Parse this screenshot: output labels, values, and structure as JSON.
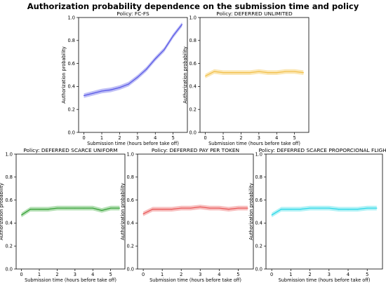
{
  "suptitle": "Authorization probability dependence on the submission time and policy",
  "chart_data": [
    {
      "type": "line",
      "title": "Policy: FC-FS",
      "xlabel": "Submission time (hours before take off)",
      "ylabel": "Authorization probability",
      "xlim": [
        -0.3,
        5.8
      ],
      "ylim": [
        0.0,
        1.0
      ],
      "xticks": [
        "0",
        "1",
        "2",
        "3",
        "4",
        "5"
      ],
      "yticks": [
        "0.0",
        "0.2",
        "0.4",
        "0.6",
        "0.8",
        "1.0"
      ],
      "grid": false,
      "color": "#5a5ae6",
      "band_color": "#b3b3f5",
      "x": [
        0,
        0.5,
        1,
        1.5,
        2,
        2.5,
        3,
        3.5,
        4,
        4.5,
        5,
        5.5
      ],
      "y": [
        0.32,
        0.34,
        0.36,
        0.37,
        0.39,
        0.42,
        0.48,
        0.55,
        0.64,
        0.72,
        0.84,
        0.94
      ],
      "band": 0.02
    },
    {
      "type": "line",
      "title": "Policy: DEFERRED UNLIMITED",
      "xlabel": "Submission time (hours before take off)",
      "ylabel": "Authorization probability",
      "xlim": [
        -0.3,
        5.8
      ],
      "ylim": [
        0.0,
        1.0
      ],
      "xticks": [
        "0",
        "1",
        "2",
        "3",
        "4",
        "5"
      ],
      "yticks": [
        "0.0",
        "0.2",
        "0.4",
        "0.6",
        "0.8",
        "1.0"
      ],
      "grid": false,
      "color": "#f2c14e",
      "band_color": "#fae3a8",
      "x": [
        0,
        0.5,
        1,
        1.5,
        2,
        2.5,
        3,
        3.5,
        4,
        4.5,
        5,
        5.5
      ],
      "y": [
        0.49,
        0.53,
        0.52,
        0.52,
        0.52,
        0.52,
        0.53,
        0.52,
        0.52,
        0.53,
        0.53,
        0.52
      ],
      "band": 0.02
    },
    {
      "type": "line",
      "title": "Policy: DEFERRED SCARCE UNIFORM",
      "xlabel": "Submission time (hours before take off)",
      "ylabel": "Authorization probability",
      "xlim": [
        -0.3,
        5.8
      ],
      "ylim": [
        0.0,
        1.0
      ],
      "xticks": [
        "0",
        "1",
        "2",
        "3",
        "4",
        "5"
      ],
      "yticks": [
        "0.0",
        "0.2",
        "0.4",
        "0.6",
        "0.8",
        "1.0"
      ],
      "grid": false,
      "color": "#3aa13a",
      "band_color": "#a8dba8",
      "x": [
        0,
        0.5,
        1,
        1.5,
        2,
        2.5,
        3,
        3.5,
        4,
        4.5,
        5,
        5.5
      ],
      "y": [
        0.47,
        0.52,
        0.52,
        0.52,
        0.53,
        0.53,
        0.53,
        0.53,
        0.53,
        0.51,
        0.53,
        0.53
      ],
      "band": 0.02
    },
    {
      "type": "line",
      "title": "Policy: DEFERRED PAY PER TOKEN",
      "xlabel": "Submission time (hours before take off)",
      "ylabel": "Authorization probability",
      "xlim": [
        -0.3,
        5.8
      ],
      "ylim": [
        0.0,
        1.0
      ],
      "xticks": [
        "0",
        "1",
        "2",
        "3",
        "4",
        "5"
      ],
      "yticks": [
        "0.0",
        "0.2",
        "0.4",
        "0.6",
        "0.8",
        "1.0"
      ],
      "grid": false,
      "color": "#e85a5a",
      "band_color": "#f7b5b5",
      "x": [
        0,
        0.5,
        1,
        1.5,
        2,
        2.5,
        3,
        3.5,
        4,
        4.5,
        5,
        5.5
      ],
      "y": [
        0.48,
        0.52,
        0.52,
        0.52,
        0.53,
        0.53,
        0.54,
        0.53,
        0.53,
        0.52,
        0.53,
        0.53
      ],
      "band": 0.02
    },
    {
      "type": "line",
      "title": "Policy: DEFERRED SCARCE PROPORCIONAL FLIGHT",
      "xlabel": "Submission time (hours before take off)",
      "ylabel": "Authorization probability",
      "xlim": [
        -0.3,
        5.8
      ],
      "ylim": [
        0.0,
        1.0
      ],
      "xticks": [
        "0",
        "1",
        "2",
        "3",
        "4",
        "5"
      ],
      "yticks": [
        "0.0",
        "0.2",
        "0.4",
        "0.6",
        "0.8",
        "1.0"
      ],
      "grid": false,
      "color": "#2ed8e8",
      "band_color": "#a6f0f5",
      "x": [
        0,
        0.5,
        1,
        1.5,
        2,
        2.5,
        3,
        3.5,
        4,
        4.5,
        5,
        5.5
      ],
      "y": [
        0.47,
        0.52,
        0.52,
        0.52,
        0.53,
        0.53,
        0.53,
        0.52,
        0.52,
        0.52,
        0.53,
        0.53
      ],
      "band": 0.02
    }
  ]
}
